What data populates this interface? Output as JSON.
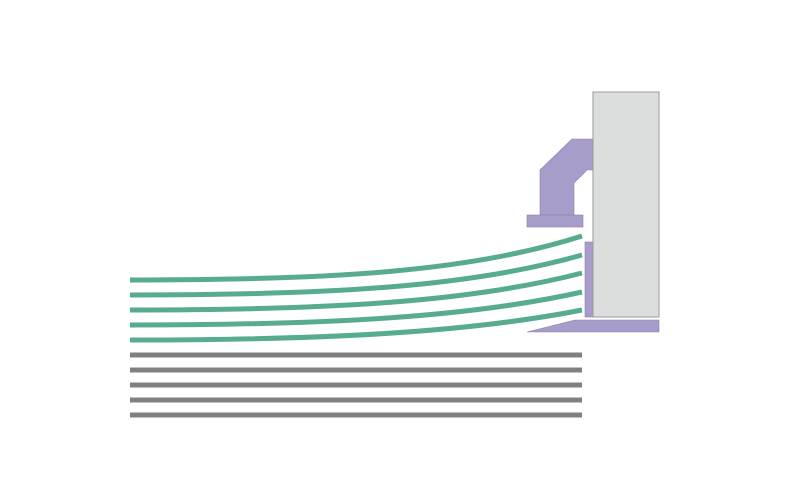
{
  "colors": {
    "background": "#ffffff",
    "panel": "#dcdedd",
    "panel_stroke": "#9a9a9a",
    "bracket": "#a89ccb",
    "bracket_stroke": "#8a80a8",
    "curved_lines": "#56ab91",
    "straight_lines": "#808080"
  },
  "diagram": {
    "curved_line_count": 5,
    "straight_line_count": 5
  }
}
